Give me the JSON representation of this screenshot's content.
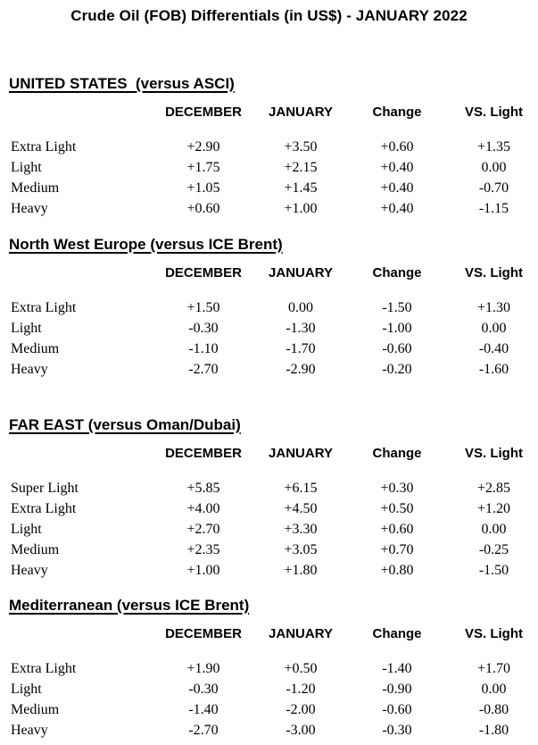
{
  "page": {
    "title": "Crude Oil (FOB) Differentials (in US$) - JANUARY 2022"
  },
  "columns": [
    "DECEMBER",
    "JANUARY",
    "Change",
    "VS. Light"
  ],
  "sections": [
    {
      "heading": "UNITED STATES  (versus ASCI)",
      "rows": [
        {
          "label": "Extra Light",
          "values": [
            "+2.90",
            "+3.50",
            "+0.60",
            "+1.35"
          ]
        },
        {
          "label": "Light",
          "values": [
            "+1.75",
            "+2.15",
            "+0.40",
            "0.00"
          ]
        },
        {
          "label": "Medium",
          "values": [
            "+1.05",
            "+1.45",
            "+0.40",
            "-0.70"
          ]
        },
        {
          "label": "Heavy",
          "values": [
            "+0.60",
            "+1.00",
            "+0.40",
            "-1.15"
          ]
        }
      ]
    },
    {
      "heading": "North West Europe (versus ICE Brent)",
      "rows": [
        {
          "label": "Extra Light",
          "values": [
            "+1.50",
            "0.00",
            "-1.50",
            "+1.30"
          ]
        },
        {
          "label": "Light",
          "values": [
            "-0.30",
            "-1.30",
            "-1.00",
            "0.00"
          ]
        },
        {
          "label": "Medium",
          "values": [
            "-1.10",
            "-1.70",
            "-0.60",
            "-0.40"
          ]
        },
        {
          "label": "Heavy",
          "values": [
            "-2.70",
            "-2.90",
            "-0.20",
            "-1.60"
          ]
        }
      ]
    },
    {
      "heading": "FAR EAST (versus Oman/Dubai)",
      "rows": [
        {
          "label": "Super Light",
          "values": [
            "+5.85",
            "+6.15",
            "+0.30",
            "+2.85"
          ]
        },
        {
          "label": "Extra Light",
          "values": [
            "+4.00",
            "+4.50",
            "+0.50",
            "+1.20"
          ]
        },
        {
          "label": "Light",
          "values": [
            "+2.70",
            "+3.30",
            "+0.60",
            "0.00"
          ]
        },
        {
          "label": "Medium",
          "values": [
            "+2.35",
            "+3.05",
            "+0.70",
            "-0.25"
          ]
        },
        {
          "label": "Heavy",
          "values": [
            "+1.00",
            "+1.80",
            "+0.80",
            "-1.50"
          ]
        }
      ]
    },
    {
      "heading": "Mediterranean (versus ICE Brent)",
      "rows": [
        {
          "label": "Extra Light",
          "values": [
            "+1.90",
            "+0.50",
            "-1.40",
            "+1.70"
          ]
        },
        {
          "label": "Light",
          "values": [
            "-0.30",
            "-1.20",
            "-0.90",
            "0.00"
          ]
        },
        {
          "label": "Medium",
          "values": [
            "-1.40",
            "-2.00",
            "-0.60",
            "-0.80"
          ]
        },
        {
          "label": "Heavy",
          "values": [
            "-2.70",
            "-3.00",
            "-0.30",
            "-1.80"
          ]
        }
      ]
    }
  ]
}
